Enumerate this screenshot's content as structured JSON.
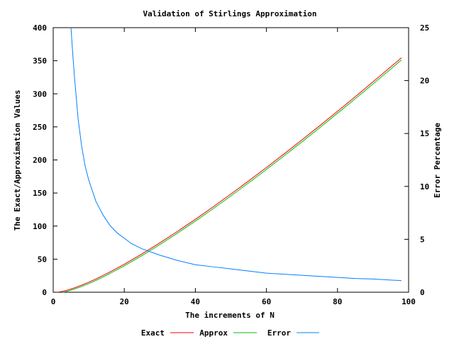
{
  "chart_data": {
    "type": "line",
    "title": "Validation of Stirlings Approximation",
    "xlabel": "The increments of N",
    "ylabel": "The Exact/Approximation Values",
    "y2label": "Error Percentage",
    "xlim": [
      0,
      100
    ],
    "ylim": [
      0,
      400
    ],
    "y2lim": [
      0,
      25
    ],
    "xticks": [
      "0",
      "20",
      "40",
      "60",
      "80",
      "100"
    ],
    "yticks": [
      "0",
      "50",
      "100",
      "150",
      "200",
      "250",
      "300",
      "350",
      "400"
    ],
    "y2ticks": [
      "0",
      "5",
      "10",
      "15",
      "20",
      "25"
    ],
    "legend_position": "bottom",
    "grid": false,
    "series": [
      {
        "name": "Exact",
        "axis": "y",
        "color": "#ff0000",
        "x": [
          1,
          2,
          3,
          4,
          5,
          6,
          8,
          10,
          12,
          15,
          20,
          25,
          30,
          35,
          40,
          45,
          50,
          55,
          60,
          65,
          70,
          75,
          80,
          85,
          90,
          95,
          98
        ],
        "values": [
          0,
          0.69,
          1.79,
          3.18,
          4.79,
          6.58,
          10.6,
          15.1,
          20.0,
          27.9,
          42.3,
          58.0,
          74.7,
          92.1,
          110.3,
          129.1,
          148.5,
          168.3,
          188.6,
          209.3,
          230.4,
          251.8,
          273.6,
          295.7,
          318.2,
          340.9,
          354.6
        ]
      },
      {
        "name": "Approx",
        "axis": "y",
        "color": "#00c000",
        "x": [
          1,
          2,
          3,
          4,
          5,
          6,
          8,
          10,
          12,
          15,
          20,
          25,
          30,
          35,
          40,
          45,
          50,
          55,
          60,
          65,
          70,
          75,
          80,
          85,
          90,
          95,
          98
        ],
        "values": [
          -1,
          -0.61,
          0.3,
          1.55,
          3.05,
          4.75,
          8.64,
          13.03,
          17.82,
          25.62,
          39.91,
          55.47,
          72.04,
          89.44,
          107.56,
          126.3,
          145.6,
          165.41,
          185.67,
          206.34,
          227.4,
          248.81,
          270.56,
          292.61,
          314.96,
          337.57,
          351.26
        ]
      },
      {
        "name": "Error",
        "axis": "y2",
        "color": "#0080ff",
        "x": [
          5,
          5.5,
          6,
          7,
          8,
          9,
          10,
          12,
          14,
          16,
          18,
          20,
          22,
          25,
          30,
          35,
          40,
          45,
          50,
          55,
          60,
          65,
          70,
          75,
          80,
          85,
          90,
          95,
          98
        ],
        "values": [
          25,
          22.5,
          20.3,
          16.4,
          13.8,
          11.9,
          10.6,
          8.6,
          7.3,
          6.3,
          5.6,
          5.1,
          4.6,
          4.1,
          3.5,
          3.0,
          2.6,
          2.4,
          2.2,
          2.0,
          1.8,
          1.7,
          1.6,
          1.5,
          1.4,
          1.3,
          1.25,
          1.15,
          1.1
        ]
      }
    ]
  }
}
